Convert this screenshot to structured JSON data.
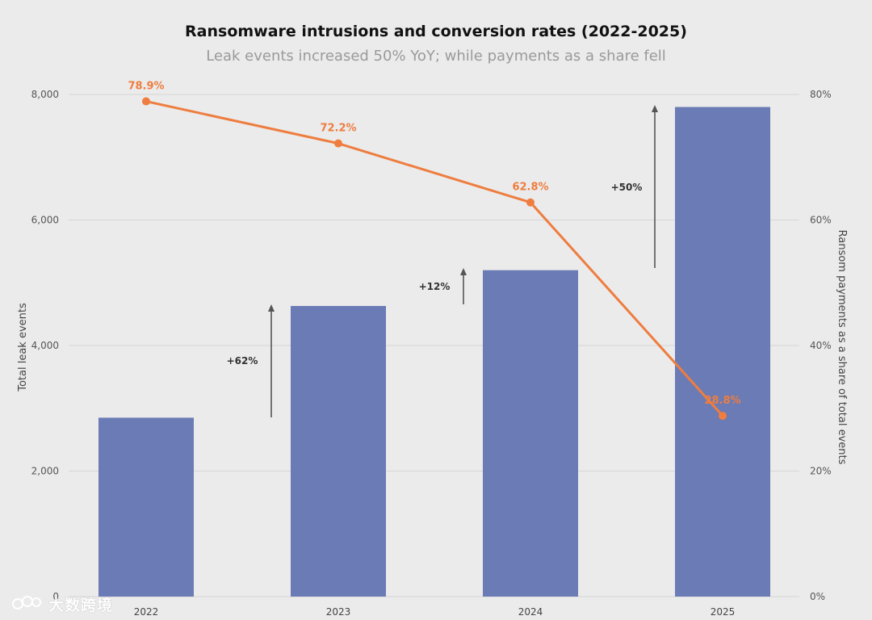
{
  "chart_data": {
    "type": "bar",
    "title": "Ransomware intrusions and conversion rates (2022-2025)",
    "subtitle": "Leak events increased 50% YoY; while payments as a share fell",
    "categories": [
      "2022",
      "2023",
      "2024",
      "2025"
    ],
    "ylabel": "Total leak events",
    "y2label": "Ransom payments as a share of total events",
    "ylim": [
      0,
      8000
    ],
    "y2lim": [
      0,
      80
    ],
    "yticks": [
      "0",
      "2,000",
      "4,000",
      "6,000",
      "8,000"
    ],
    "y2ticks": [
      "0%",
      "20%",
      "40%",
      "60%",
      "80%"
    ],
    "grid": true,
    "series": [
      {
        "kind": "bar",
        "axis": "left",
        "values": [
          2850,
          4630,
          5200,
          7800
        ],
        "color": "#6b7bb5"
      },
      {
        "kind": "line",
        "axis": "right",
        "values": [
          78.9,
          72.2,
          62.8,
          28.8
        ],
        "labels": [
          "78.9%",
          "72.2%",
          "62.8%",
          "28.8%"
        ],
        "color": "#ee7d3f"
      }
    ],
    "annotations": [
      {
        "label": "+62%",
        "between": [
          "2022",
          "2023"
        ]
      },
      {
        "label": "+12%",
        "between": [
          "2023",
          "2024"
        ]
      },
      {
        "label": "+50%",
        "between": [
          "2024",
          "2025"
        ]
      }
    ]
  },
  "watermark": {
    "text": "大数跨境"
  }
}
